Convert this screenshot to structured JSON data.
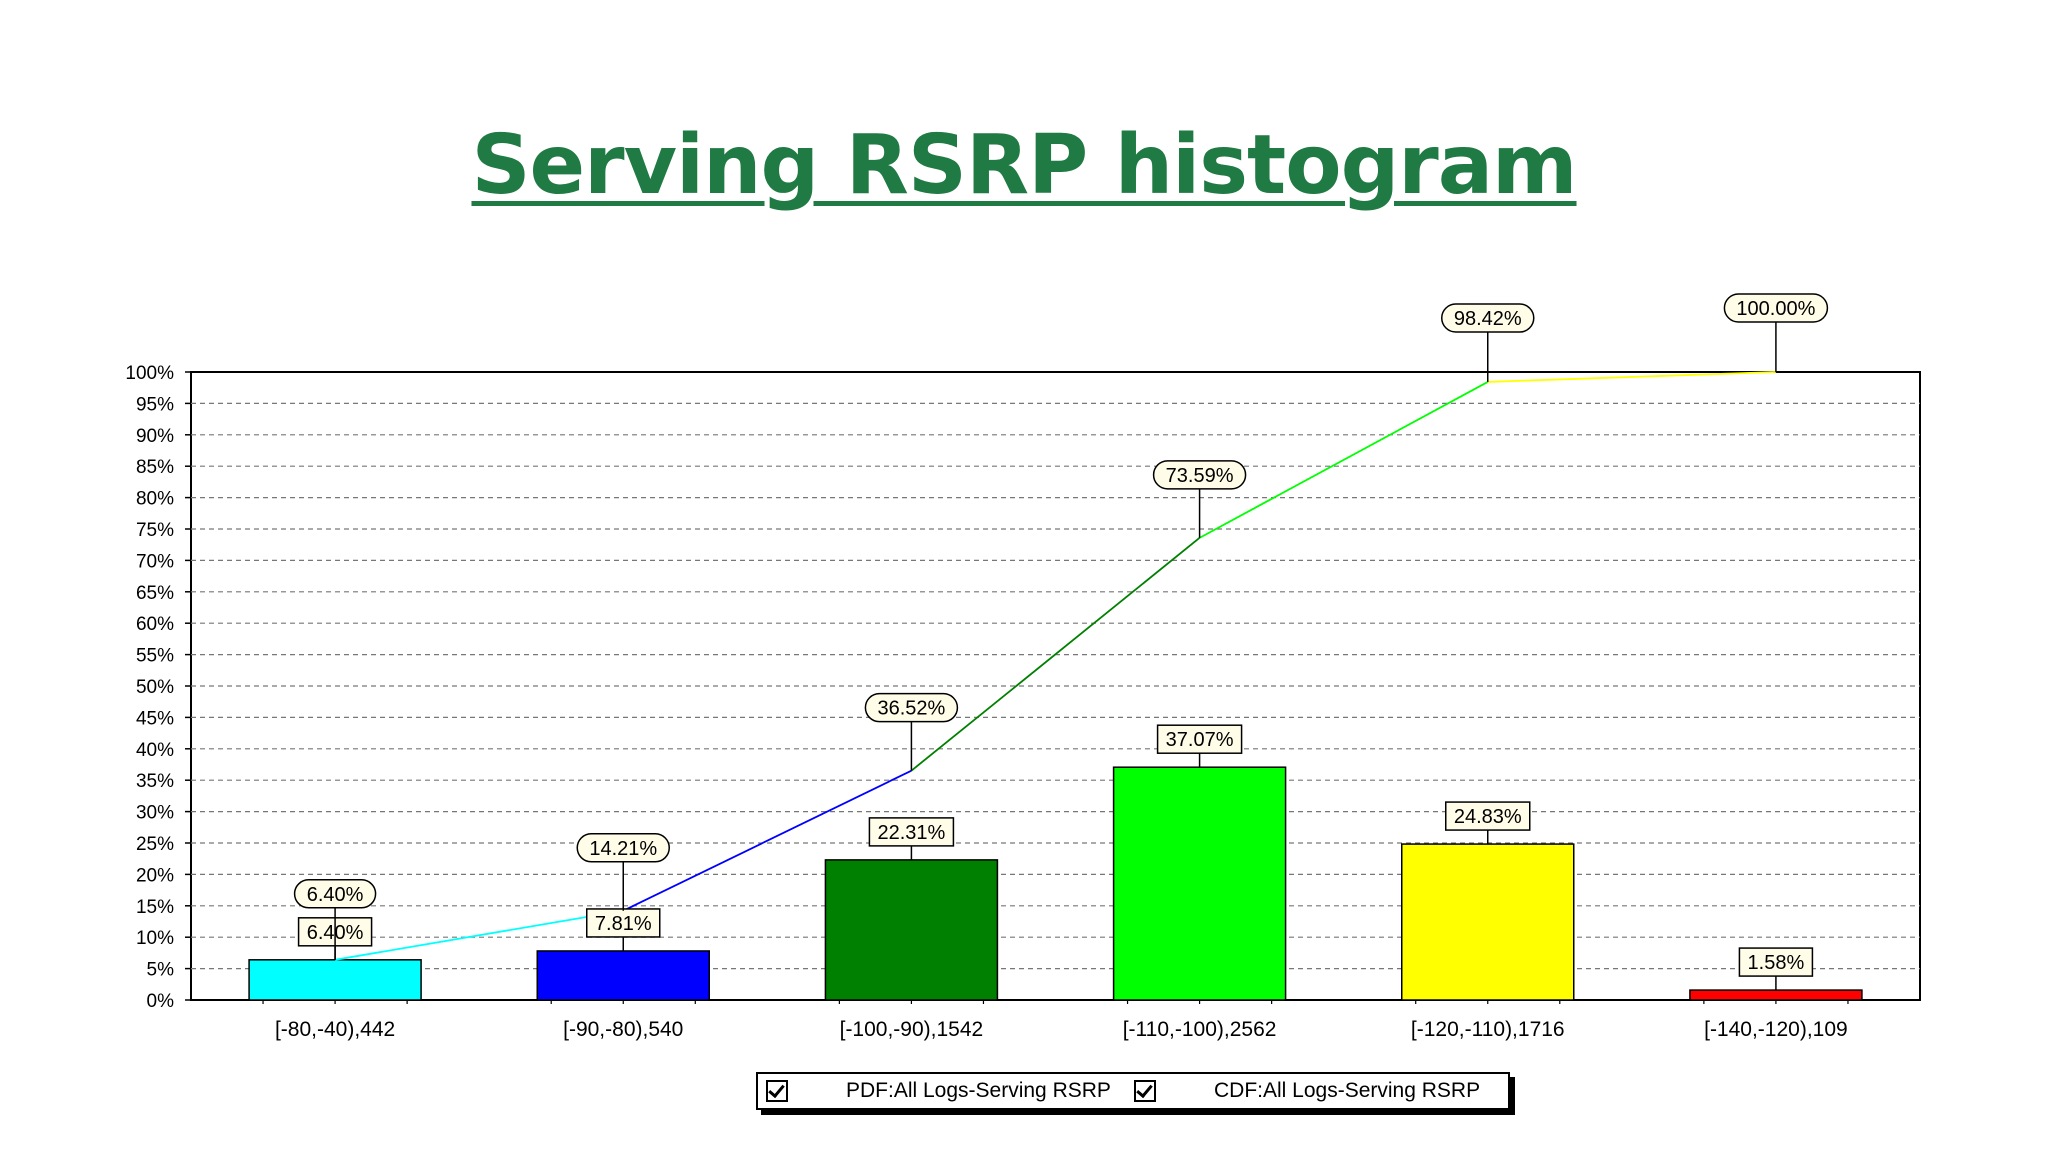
{
  "title": "Serving RSRP histogram",
  "chart_data": {
    "type": "bar",
    "ylim": [
      0,
      100
    ],
    "yticks": [
      "0%",
      "5%",
      "10%",
      "15%",
      "20%",
      "25%",
      "30%",
      "35%",
      "40%",
      "45%",
      "50%",
      "55%",
      "60%",
      "65%",
      "70%",
      "75%",
      "80%",
      "85%",
      "90%",
      "95%",
      "100%"
    ],
    "categories": [
      "[-80,-40),442",
      "[-90,-80),540",
      "[-100,-90),1542",
      "[-110,-100),2562",
      "[-120,-110),1716",
      "[-140,-120),109"
    ],
    "grid": true,
    "legend_position": "bottom",
    "series": [
      {
        "name": "PDF:All Logs-Serving RSRP",
        "type": "bar",
        "values": [
          6.4,
          7.81,
          22.31,
          37.07,
          24.83,
          1.58
        ],
        "labels": [
          "6.40%",
          "7.81%",
          "22.31%",
          "37.07%",
          "24.83%",
          "1.58%"
        ],
        "colors": [
          "#00ffff",
          "#0000ff",
          "#008000",
          "#00ff00",
          "#ffff00",
          "#ff0000"
        ]
      },
      {
        "name": "CDF:All Logs-Serving RSRP",
        "type": "line",
        "values": [
          6.4,
          14.21,
          36.52,
          73.59,
          98.42,
          100.0
        ],
        "labels": [
          "6.40%",
          "14.21%",
          "36.52%",
          "73.59%",
          "98.42%",
          "100.00%"
        ],
        "colors": [
          "#00ffff",
          "#0000ff",
          "#008000",
          "#00ff00",
          "#ffff00",
          "#ff0000"
        ]
      }
    ]
  }
}
